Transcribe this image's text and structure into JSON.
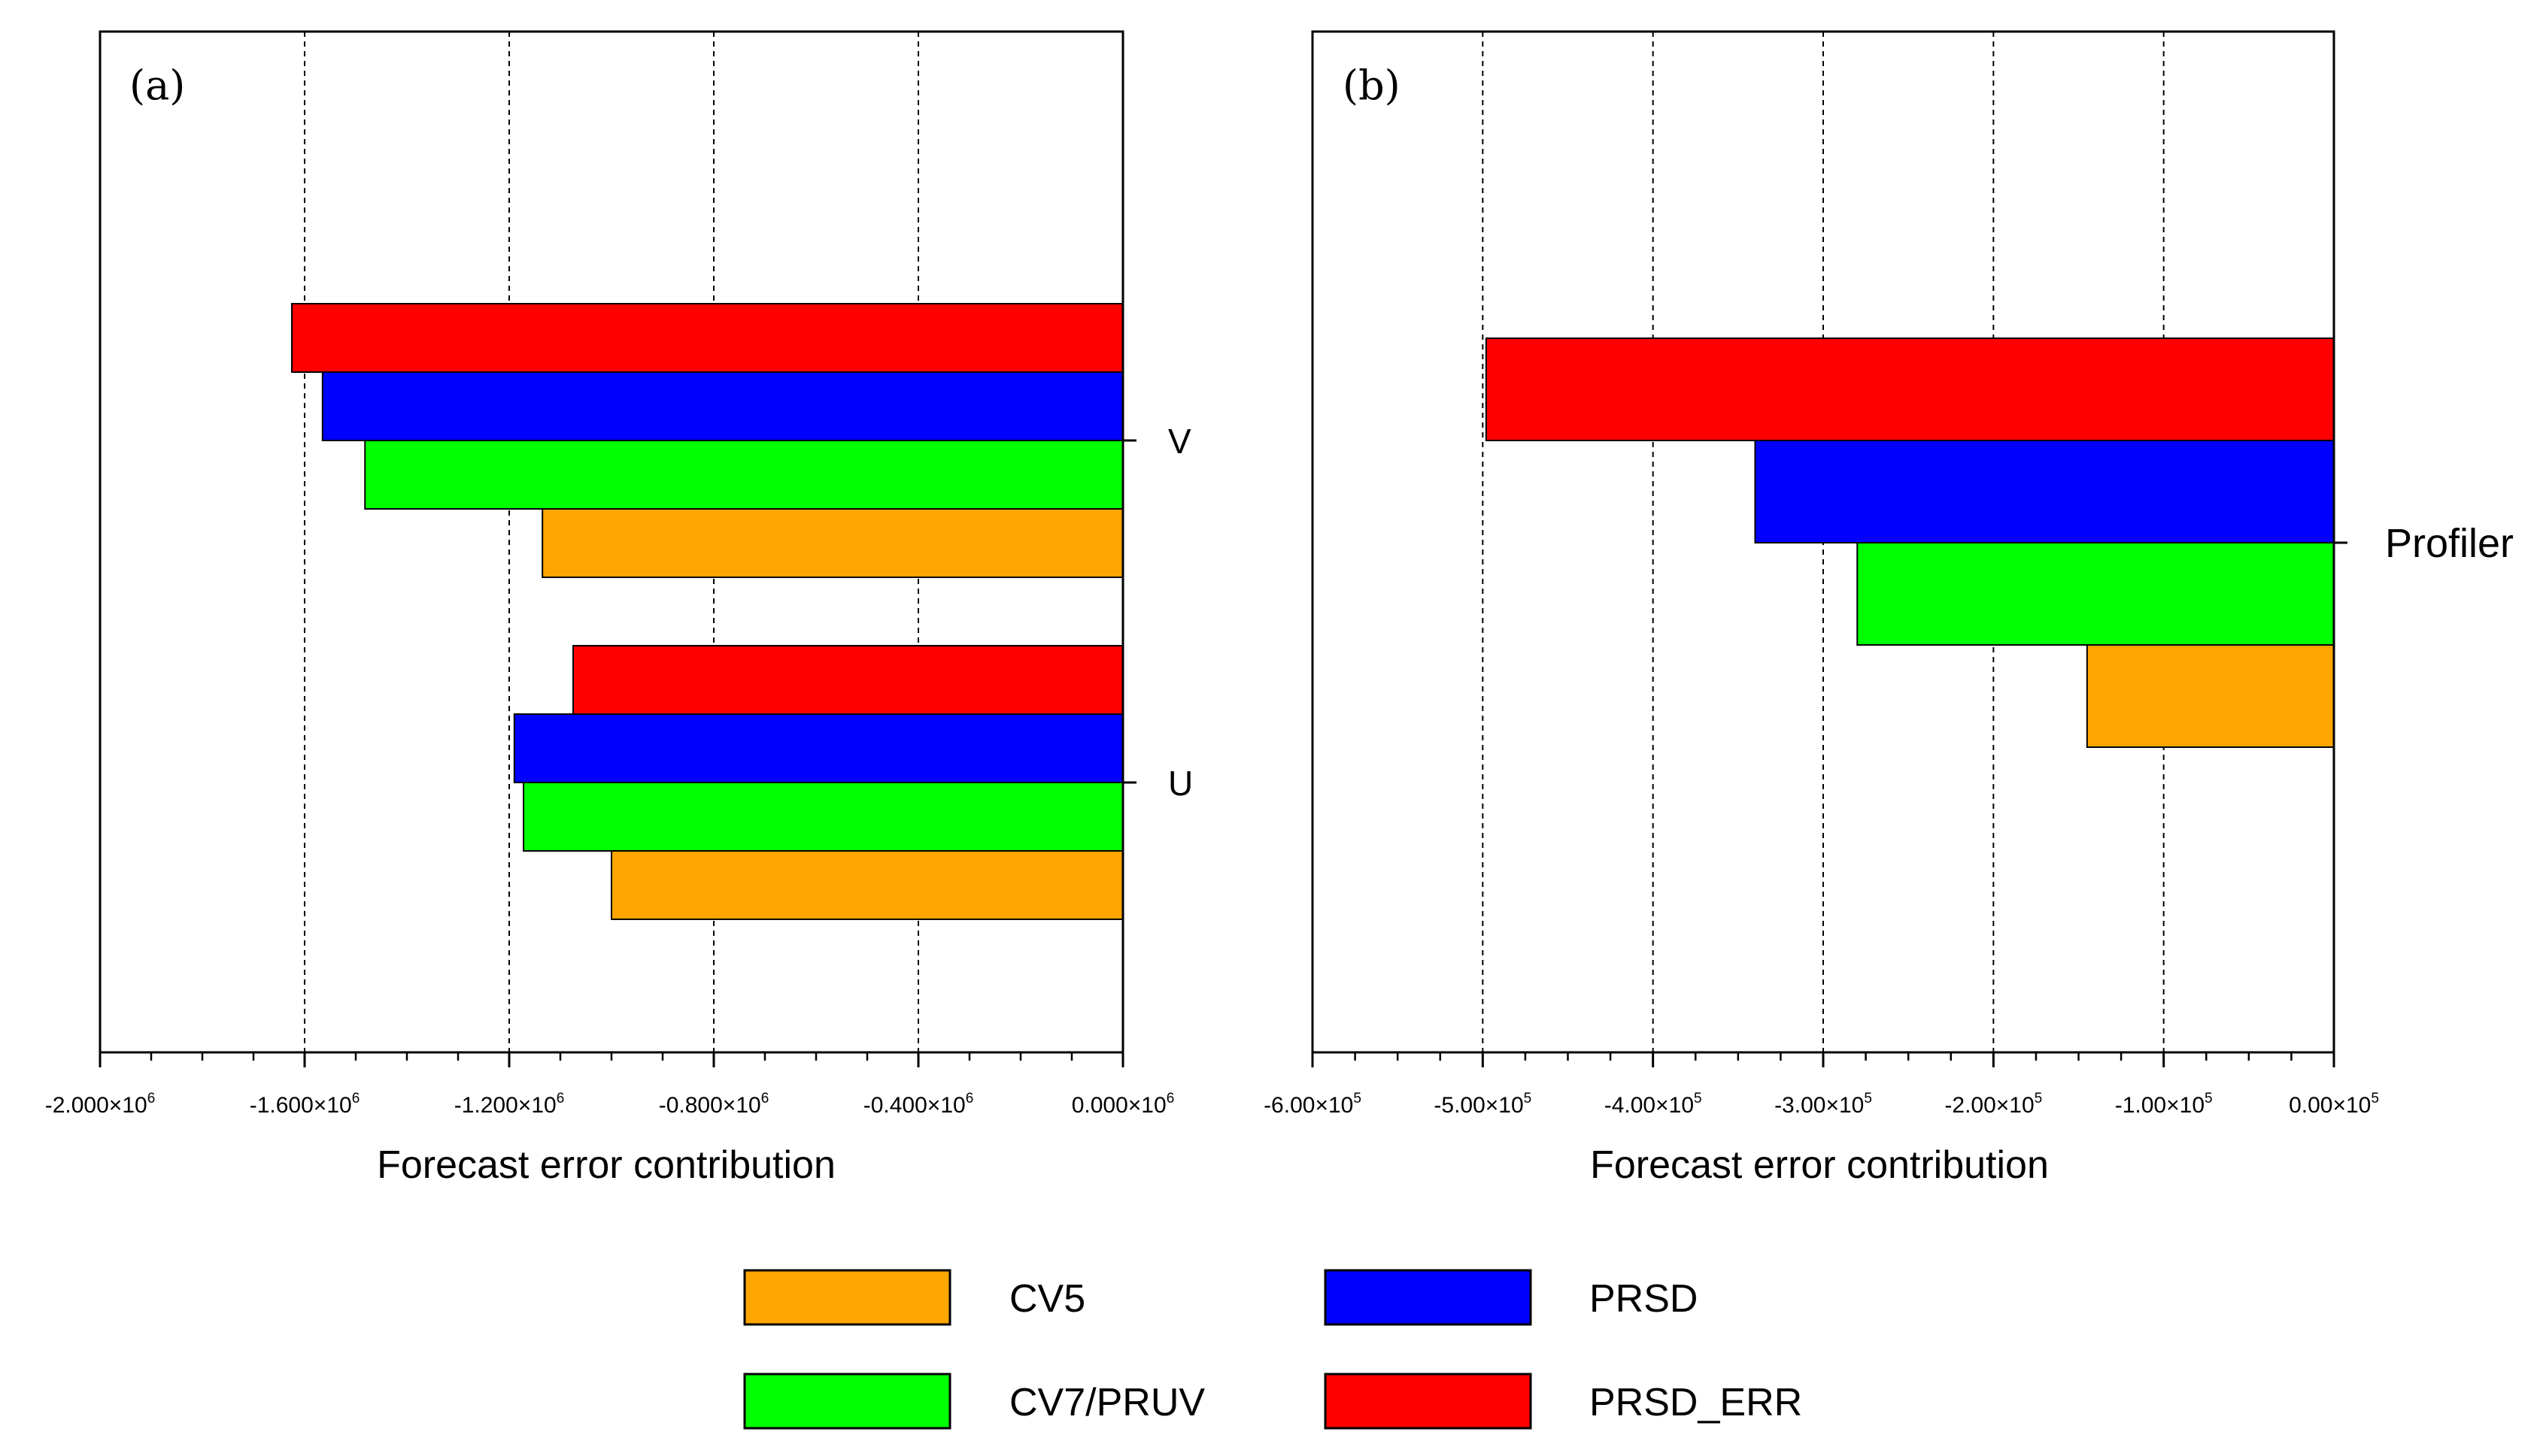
{
  "chart_data": [
    {
      "type": "bar",
      "orientation": "horizontal",
      "panel_label": "(a)",
      "xlabel": "Forecast error contribution",
      "xlim": [
        -2000000.0,
        0
      ],
      "grid": true,
      "x_ticks": [
        {
          "mantissa": "-2.000",
          "exp": "6"
        },
        {
          "mantissa": "-1.600",
          "exp": "6"
        },
        {
          "mantissa": "-1.200",
          "exp": "6"
        },
        {
          "mantissa": "-0.800",
          "exp": "6"
        },
        {
          "mantissa": "-0.400",
          "exp": "6"
        },
        {
          "mantissa": "0.000",
          "exp": "6"
        }
      ],
      "tick_values": [
        -2000000.0,
        -1600000.0,
        -1200000.0,
        -800000.0,
        -400000.0,
        0
      ],
      "categories": [
        "V",
        "U"
      ],
      "series": [
        {
          "name": "PRSD_ERR",
          "values": [
            -1625000,
            -1075000
          ]
        },
        {
          "name": "PRSD",
          "values": [
            -1565000,
            -1190000
          ]
        },
        {
          "name": "CV7/PRUV",
          "values": [
            -1482000,
            -1172000
          ]
        },
        {
          "name": "CV5",
          "values": [
            -1135000,
            -1000000
          ]
        }
      ]
    },
    {
      "type": "bar",
      "orientation": "horizontal",
      "panel_label": "(b)",
      "xlabel": "Forecast error contribution",
      "xlim": [
        -600000.0,
        0
      ],
      "grid": true,
      "x_ticks": [
        {
          "mantissa": "-6.00",
          "exp": "5"
        },
        {
          "mantissa": "-5.00",
          "exp": "5"
        },
        {
          "mantissa": "-4.00",
          "exp": "5"
        },
        {
          "mantissa": "-3.00",
          "exp": "5"
        },
        {
          "mantissa": "-2.00",
          "exp": "5"
        },
        {
          "mantissa": "-1.00",
          "exp": "5"
        },
        {
          "mantissa": "0.00",
          "exp": "5"
        }
      ],
      "tick_values": [
        -600000.0,
        -500000.0,
        -400000.0,
        -300000.0,
        -200000.0,
        -100000.0,
        0
      ],
      "categories": [
        "Profiler"
      ],
      "series": [
        {
          "name": "PRSD_ERR",
          "values": [
            -498000
          ]
        },
        {
          "name": "PRSD",
          "values": [
            -340000
          ]
        },
        {
          "name": "CV7/PRUV",
          "values": [
            -280000
          ]
        },
        {
          "name": "CV5",
          "values": [
            -145000
          ]
        }
      ]
    }
  ],
  "colors": {
    "CV5": "#ffa500",
    "CV7/PRUV": "#00ff00",
    "PRSD": "#0000ff",
    "PRSD_ERR": "#ff0000"
  },
  "legend": {
    "items": [
      {
        "name": "CV5",
        "color": "#ffa500"
      },
      {
        "name": "PRSD",
        "color": "#0000ff"
      },
      {
        "name": "CV7/PRUV",
        "color": "#00ff00"
      },
      {
        "name": "PRSD_ERR",
        "color": "#ff0000"
      }
    ]
  }
}
